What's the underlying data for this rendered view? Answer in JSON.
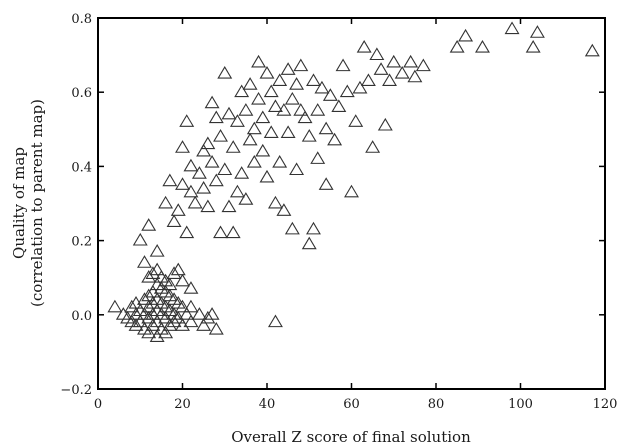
{
  "chart_data": {
    "type": "scatter",
    "marker": "hollow-triangle",
    "xlabel": "Overall Z score of final solution",
    "ylabel_line1": "Quality of map",
    "ylabel_line2": "(correlation to parent map)",
    "xlim": [
      0,
      120
    ],
    "ylim": [
      -0.2,
      0.8
    ],
    "xticks": [
      "0",
      "20",
      "40",
      "60",
      "80",
      "100",
      "120"
    ],
    "yticks": [
      "−0.2",
      "0.0",
      "0.2",
      "0.4",
      "0.6",
      "0.8"
    ],
    "grid": false,
    "colors": {
      "marker_stroke": "#333333",
      "axes": "#000000"
    },
    "points": [
      [
        4,
        0.02
      ],
      [
        6,
        0.0
      ],
      [
        7,
        -0.01
      ],
      [
        8,
        0.02
      ],
      [
        8,
        -0.02
      ],
      [
        9,
        0.03
      ],
      [
        9,
        0.0
      ],
      [
        9,
        -0.03
      ],
      [
        10,
        0.01
      ],
      [
        10,
        -0.02
      ],
      [
        11,
        0.04
      ],
      [
        11,
        0.0
      ],
      [
        11,
        -0.04
      ],
      [
        12,
        0.05
      ],
      [
        12,
        0.02
      ],
      [
        12,
        -0.01
      ],
      [
        12,
        -0.05
      ],
      [
        13,
        0.06
      ],
      [
        13,
        0.03
      ],
      [
        13,
        0.0
      ],
      [
        13,
        -0.03
      ],
      [
        14,
        0.08
      ],
      [
        14,
        0.04
      ],
      [
        14,
        0.01
      ],
      [
        14,
        -0.02
      ],
      [
        14,
        -0.06
      ],
      [
        15,
        0.07
      ],
      [
        15,
        0.03
      ],
      [
        15,
        0.0
      ],
      [
        15,
        -0.04
      ],
      [
        16,
        0.06
      ],
      [
        16,
        0.02
      ],
      [
        16,
        -0.01
      ],
      [
        16,
        -0.05
      ],
      [
        17,
        0.05
      ],
      [
        17,
        0.01
      ],
      [
        17,
        -0.03
      ],
      [
        18,
        0.04
      ],
      [
        18,
        0.0
      ],
      [
        18,
        -0.02
      ],
      [
        19,
        0.03
      ],
      [
        19,
        -0.01
      ],
      [
        20,
        0.02
      ],
      [
        20,
        -0.03
      ],
      [
        21,
        0.0
      ],
      [
        22,
        0.02
      ],
      [
        22,
        -0.02
      ],
      [
        24,
        0.0
      ],
      [
        25,
        -0.03
      ],
      [
        26,
        -0.01
      ],
      [
        27,
        0.0
      ],
      [
        28,
        -0.04
      ],
      [
        12,
        0.1
      ],
      [
        14,
        0.12
      ],
      [
        16,
        0.09
      ],
      [
        11,
        0.14
      ],
      [
        13,
        0.11
      ],
      [
        15,
        0.1
      ],
      [
        17,
        0.08
      ],
      [
        18,
        0.11
      ],
      [
        10,
        0.2
      ],
      [
        14,
        0.17
      ],
      [
        12,
        0.24
      ],
      [
        19,
        0.12
      ],
      [
        20,
        0.09
      ],
      [
        22,
        0.07
      ],
      [
        16,
        0.3
      ],
      [
        18,
        0.25
      ],
      [
        20,
        0.35
      ],
      [
        19,
        0.28
      ],
      [
        21,
        0.22
      ],
      [
        17,
        0.36
      ],
      [
        22,
        0.4
      ],
      [
        20,
        0.45
      ],
      [
        21,
        0.52
      ],
      [
        22,
        0.33
      ],
      [
        23,
        0.3
      ],
      [
        24,
        0.38
      ],
      [
        25,
        0.44
      ],
      [
        25,
        0.34
      ],
      [
        26,
        0.46
      ],
      [
        26,
        0.29
      ],
      [
        27,
        0.41
      ],
      [
        27,
        0.57
      ],
      [
        28,
        0.53
      ],
      [
        28,
        0.36
      ],
      [
        29,
        0.48
      ],
      [
        29,
        0.22
      ],
      [
        30,
        0.65
      ],
      [
        30,
        0.39
      ],
      [
        31,
        0.54
      ],
      [
        31,
        0.29
      ],
      [
        32,
        0.45
      ],
      [
        32,
        0.22
      ],
      [
        33,
        0.52
      ],
      [
        33,
        0.33
      ],
      [
        34,
        0.6
      ],
      [
        34,
        0.38
      ],
      [
        35,
        0.55
      ],
      [
        35,
        0.31
      ],
      [
        36,
        0.62
      ],
      [
        36,
        0.47
      ],
      [
        37,
        0.5
      ],
      [
        37,
        0.41
      ],
      [
        38,
        0.68
      ],
      [
        38,
        0.58
      ],
      [
        39,
        0.53
      ],
      [
        39,
        0.44
      ],
      [
        40,
        0.65
      ],
      [
        40,
        0.37
      ],
      [
        41,
        0.6
      ],
      [
        41,
        0.49
      ],
      [
        42,
        0.56
      ],
      [
        42,
        0.3
      ],
      [
        42,
        -0.02
      ],
      [
        43,
        0.63
      ],
      [
        43,
        0.41
      ],
      [
        44,
        0.55
      ],
      [
        44,
        0.28
      ],
      [
        45,
        0.66
      ],
      [
        45,
        0.49
      ],
      [
        46,
        0.58
      ],
      [
        46,
        0.23
      ],
      [
        47,
        0.62
      ],
      [
        47,
        0.39
      ],
      [
        48,
        0.55
      ],
      [
        48,
        0.67
      ],
      [
        49,
        0.53
      ],
      [
        50,
        0.48
      ],
      [
        50,
        0.19
      ],
      [
        51,
        0.63
      ],
      [
        51,
        0.23
      ],
      [
        52,
        0.55
      ],
      [
        52,
        0.42
      ],
      [
        53,
        0.61
      ],
      [
        54,
        0.5
      ],
      [
        54,
        0.35
      ],
      [
        55,
        0.59
      ],
      [
        56,
        0.47
      ],
      [
        57,
        0.56
      ],
      [
        58,
        0.67
      ],
      [
        59,
        0.6
      ],
      [
        60,
        0.33
      ],
      [
        61,
        0.52
      ],
      [
        62,
        0.61
      ],
      [
        63,
        0.72
      ],
      [
        64,
        0.63
      ],
      [
        65,
        0.45
      ],
      [
        66,
        0.7
      ],
      [
        67,
        0.66
      ],
      [
        68,
        0.51
      ],
      [
        69,
        0.63
      ],
      [
        70,
        0.68
      ],
      [
        72,
        0.65
      ],
      [
        74,
        0.68
      ],
      [
        75,
        0.64
      ],
      [
        77,
        0.67
      ],
      [
        85,
        0.72
      ],
      [
        87,
        0.75
      ],
      [
        91,
        0.72
      ],
      [
        98,
        0.77
      ],
      [
        103,
        0.72
      ],
      [
        104,
        0.76
      ],
      [
        117,
        0.71
      ]
    ]
  }
}
